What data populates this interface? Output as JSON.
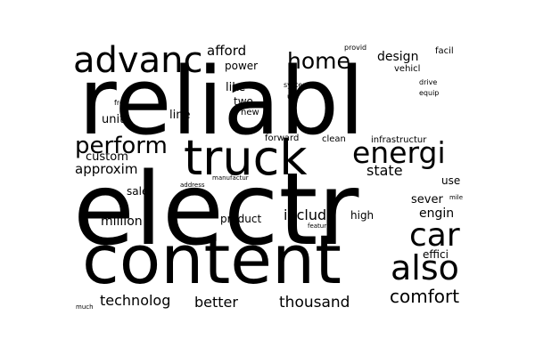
{
  "words": [
    {
      "id": "reliabl",
      "text": "reliabl"
    },
    {
      "id": "electr",
      "text": "electr"
    },
    {
      "id": "content",
      "text": "content"
    },
    {
      "id": "truck",
      "text": "truck"
    },
    {
      "id": "advanc",
      "text": "advanc"
    },
    {
      "id": "energi",
      "text": "energi"
    },
    {
      "id": "also",
      "text": "also"
    },
    {
      "id": "car",
      "text": "car"
    },
    {
      "id": "perform",
      "text": "perform"
    },
    {
      "id": "home",
      "text": "home"
    },
    {
      "id": "comfort",
      "text": "comfort"
    },
    {
      "id": "thousand",
      "text": "thousand"
    },
    {
      "id": "technolog",
      "text": "technolog"
    },
    {
      "id": "better",
      "text": "better"
    },
    {
      "id": "million",
      "text": "million"
    },
    {
      "id": "includ",
      "text": "includ"
    },
    {
      "id": "state",
      "text": "state"
    },
    {
      "id": "approxim",
      "text": "approxim"
    },
    {
      "id": "afford",
      "text": "afford"
    },
    {
      "id": "design",
      "text": "design"
    },
    {
      "id": "custom",
      "text": "custom"
    },
    {
      "id": "engin",
      "text": "engin"
    },
    {
      "id": "sever",
      "text": "sever"
    },
    {
      "id": "power",
      "text": "power"
    },
    {
      "id": "like",
      "text": "like"
    },
    {
      "id": "sale",
      "text": "sale"
    },
    {
      "id": "product",
      "text": "product"
    },
    {
      "id": "unit",
      "text": "unit"
    },
    {
      "id": "line",
      "text": "line"
    },
    {
      "id": "high",
      "text": "high"
    },
    {
      "id": "effici",
      "text": "effici"
    },
    {
      "id": "use",
      "text": "use"
    },
    {
      "id": "two",
      "text": "two"
    },
    {
      "id": "new",
      "text": "new"
    },
    {
      "id": "clean",
      "text": "clean"
    },
    {
      "id": "forward",
      "text": "forward"
    },
    {
      "id": "infrastructur",
      "text": "infrastructur"
    },
    {
      "id": "vehicl",
      "text": "vehicl"
    },
    {
      "id": "facil",
      "text": "facil"
    },
    {
      "id": "drive",
      "text": "drive"
    },
    {
      "id": "equip",
      "text": "equip"
    },
    {
      "id": "system",
      "text": "system"
    },
    {
      "id": "u",
      "text": "u"
    },
    {
      "id": "free",
      "text": "free"
    },
    {
      "id": "provid",
      "text": "provid"
    },
    {
      "id": "address",
      "text": "address"
    },
    {
      "id": "manufactur",
      "text": "manufactur"
    },
    {
      "id": "featur",
      "text": "featur"
    },
    {
      "id": "mile",
      "text": "mile"
    },
    {
      "id": "much",
      "text": "much"
    }
  ]
}
